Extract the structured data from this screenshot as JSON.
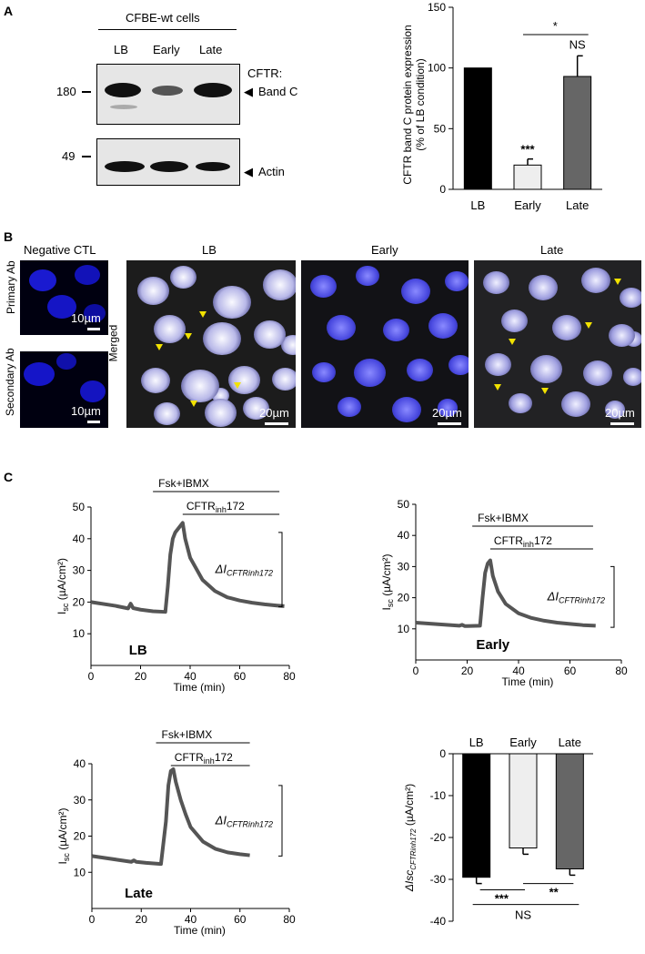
{
  "panels": {
    "A": "A",
    "B": "B",
    "C": "C"
  },
  "panelA": {
    "cell_line": "CFBE-wt cells",
    "lanes": [
      "LB",
      "Early",
      "Late"
    ],
    "mw_top": "180",
    "mw_bottom": "49",
    "cftr_label": "CFTR:",
    "bandC_label": "Band C",
    "actin_label": "Actin",
    "bandC_intensity": [
      1.0,
      0.35,
      0.9
    ],
    "actin_intensity": [
      1.0,
      1.0,
      0.8
    ]
  },
  "panelB": {
    "neg_ctl": "Negative CTL",
    "primary_ab": "Primary Ab",
    "secondary_ab": "Secondary Ab",
    "merged": "Merged",
    "cols": [
      "LB",
      "Early",
      "Late"
    ],
    "scale_small": "10µm",
    "scale_large": "20µm"
  },
  "chart_data": [
    {
      "type": "bar",
      "id": "protein-expression",
      "categories": [
        "LB",
        "Early",
        "Late"
      ],
      "values": [
        100,
        20,
        93
      ],
      "errors": [
        0,
        5,
        17
      ],
      "colors": [
        "#000000",
        "#eeeeee",
        "#666666"
      ],
      "ylabel_line1": "CFTR band C protein expression",
      "ylabel_line2": "(% of LB condition)",
      "ylim": [
        0,
        150
      ],
      "yticks": [
        "0",
        "50",
        "100",
        "150"
      ],
      "annotations": {
        "early": "***",
        "late": "NS",
        "bracket": "*"
      }
    },
    {
      "type": "line",
      "id": "trace-LB",
      "label": "LB",
      "xlabel": "Time (min)",
      "ylabel": "I",
      "ylabel_sub": "sc",
      "ylabel_unit": " (µA/cm²)",
      "xlim": [
        0,
        80
      ],
      "ylim": [
        0,
        50
      ],
      "xticks": [
        "0",
        "20",
        "40",
        "60",
        "80"
      ],
      "yticks": [
        "10",
        "20",
        "30",
        "40",
        "50"
      ],
      "treatment1": "Fsk+IBMX",
      "treatment2_base": "CFTR",
      "treatment2_sub": "inh",
      "treatment2_suffix": "172",
      "delta_label": "ΔI",
      "delta_sub": "CFTRinh172",
      "x": [
        0,
        10,
        15,
        16,
        17,
        20,
        25,
        30,
        31,
        32,
        33,
        34,
        35,
        36,
        37,
        38,
        40,
        45,
        50,
        55,
        60,
        65,
        70,
        75,
        78
      ],
      "y": [
        20,
        18.8,
        18.0,
        19.5,
        18.1,
        17.6,
        17.1,
        16.9,
        25,
        35,
        40,
        42,
        43,
        44,
        45,
        40,
        34,
        27,
        23.5,
        21.5,
        20.5,
        19.8,
        19.3,
        18.9,
        18.7
      ]
    },
    {
      "type": "line",
      "id": "trace-Early",
      "label": "Early",
      "xlabel": "Time (min)",
      "ylabel": "I",
      "ylabel_sub": "sc",
      "ylabel_unit": " (µA/cm²)",
      "xlim": [
        0,
        80
      ],
      "ylim": [
        0,
        50
      ],
      "xticks": [
        "0",
        "20",
        "40",
        "60",
        "80"
      ],
      "yticks": [
        "10",
        "20",
        "30",
        "40",
        "50"
      ],
      "treatment1": "Fsk+IBMX",
      "treatment2_base": "CFTR",
      "treatment2_sub": "inh",
      "treatment2_suffix": "172",
      "delta_label": "ΔI",
      "delta_sub": "CFTRinh172",
      "x": [
        0,
        10,
        17,
        18,
        19,
        20,
        25,
        26,
        27,
        28,
        29,
        30,
        32,
        35,
        40,
        45,
        50,
        55,
        60,
        65,
        70
      ],
      "y": [
        12,
        11.4,
        11.0,
        11.3,
        10.9,
        10.9,
        11.0,
        20,
        28,
        31,
        32,
        27,
        22,
        18,
        15,
        13.5,
        12.6,
        12.0,
        11.6,
        11.2,
        11.0
      ]
    },
    {
      "type": "line",
      "id": "trace-Late",
      "label": "Late",
      "xlabel": "Time (min)",
      "ylabel": "I",
      "ylabel_sub": "sc",
      "ylabel_unit": " (µA/cm²)",
      "xlim": [
        0,
        80
      ],
      "ylim": [
        0,
        40
      ],
      "xticks": [
        "0",
        "20",
        "40",
        "60",
        "80"
      ],
      "yticks": [
        "10",
        "20",
        "30",
        "40"
      ],
      "treatment1": "Fsk+IBMX",
      "treatment2_base": "CFTR",
      "treatment2_sub": "inh",
      "treatment2_suffix": "172",
      "delta_label": "ΔI",
      "delta_sub": "CFTRinh172",
      "x": [
        0,
        5,
        10,
        16,
        17,
        18,
        22,
        28,
        30,
        31,
        32,
        33,
        34,
        36,
        38,
        40,
        45,
        50,
        55,
        60,
        64
      ],
      "y": [
        14.5,
        14.0,
        13.5,
        12.9,
        13.3,
        12.9,
        12.6,
        12.3,
        24,
        34,
        38,
        38.5,
        35,
        30,
        26,
        22.5,
        18.5,
        16.5,
        15.5,
        15.0,
        14.7
      ]
    },
    {
      "type": "bar",
      "id": "delta-isc",
      "categories": [
        "LB",
        "Early",
        "Late"
      ],
      "values": [
        -29.5,
        -22.5,
        -27.5
      ],
      "errors": [
        1.5,
        1.5,
        1.5
      ],
      "colors": [
        "#000000",
        "#eeeeee",
        "#666666"
      ],
      "ylabel": "ΔIsc",
      "ylabel_sub": "CFTRinh172",
      "ylabel_unit": " (µA/cm²)",
      "ylim": [
        -40,
        0
      ],
      "yticks": [
        "0",
        "-10",
        "-20",
        "-30",
        "-40"
      ],
      "annotations": {
        "lb_early": "***",
        "early_late": "**",
        "lb_late": "NS"
      }
    }
  ]
}
